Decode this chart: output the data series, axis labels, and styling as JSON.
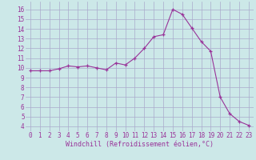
{
  "x": [
    0,
    1,
    2,
    3,
    4,
    5,
    6,
    7,
    8,
    9,
    10,
    11,
    12,
    13,
    14,
    15,
    16,
    17,
    18,
    19,
    20,
    21,
    22,
    23
  ],
  "y": [
    9.7,
    9.7,
    9.7,
    9.9,
    10.2,
    10.1,
    10.2,
    10.0,
    9.8,
    10.5,
    10.3,
    11.0,
    12.0,
    13.2,
    13.4,
    16.0,
    15.5,
    14.1,
    12.7,
    11.7,
    7.0,
    5.3,
    4.5,
    4.1
  ],
  "line_color": "#993399",
  "marker": "+",
  "marker_size": 3,
  "bg_color": "#cce8e8",
  "grid_color": "#aaaacc",
  "xlabel": "Windchill (Refroidissement éolien,°C)",
  "xlabel_color": "#993399",
  "ylabel_ticks": [
    4,
    5,
    6,
    7,
    8,
    9,
    10,
    11,
    12,
    13,
    14,
    15,
    16
  ],
  "xlim": [
    -0.5,
    23.5
  ],
  "ylim": [
    3.5,
    16.8
  ],
  "tick_fontsize": 5.5,
  "xlabel_fontsize": 6.0
}
